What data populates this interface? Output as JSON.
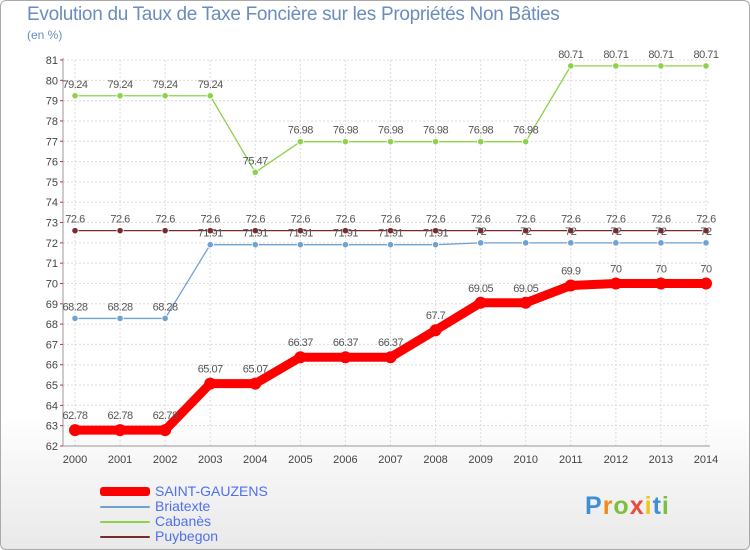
{
  "chart_data": {
    "type": "line",
    "title": "Evolution du Taux de Taxe Foncière sur les Propriétés Non Bâties",
    "ylabel": "(en %)",
    "xlabel": "",
    "ylim": [
      62,
      81
    ],
    "yticks": [
      62,
      63,
      64,
      65,
      66,
      67,
      68,
      69,
      70,
      71,
      72,
      73,
      74,
      75,
      76,
      77,
      78,
      79,
      80,
      81
    ],
    "categories": [
      "2000",
      "2001",
      "2002",
      "2003",
      "2004",
      "2005",
      "2006",
      "2007",
      "2008",
      "2009",
      "2010",
      "2011",
      "2012",
      "2013",
      "2014"
    ],
    "grid": true,
    "series": [
      {
        "name": "Cabanès",
        "color": "#8cd24a",
        "values": [
          79.24,
          79.24,
          79.24,
          79.24,
          75.47,
          76.98,
          76.98,
          76.98,
          76.98,
          76.98,
          76.98,
          80.71,
          80.71,
          80.71,
          80.71
        ],
        "labels": [
          "79.24",
          "79.24",
          "79.24",
          "79.24",
          "75.47",
          "76.98",
          "76.98",
          "76.98",
          "76.98",
          "76.98",
          "76.98",
          "80.71",
          "80.71",
          "80.71",
          "80.71"
        ]
      },
      {
        "name": "Briatexte",
        "color": "#6ea2d2",
        "values": [
          68.28,
          68.28,
          68.28,
          71.91,
          71.91,
          71.91,
          71.91,
          71.91,
          71.91,
          72,
          72,
          72,
          72,
          72,
          72
        ],
        "labels": [
          "68.28",
          "68.28",
          "68.28",
          "71.91",
          "71.91",
          "71.91",
          "71.91",
          "71.91",
          "71.91",
          "72",
          "72",
          "72",
          "72",
          "72",
          "72"
        ]
      },
      {
        "name": "Puybegon",
        "color": "#7a2a2a",
        "values": [
          72.6,
          72.6,
          72.6,
          72.6,
          72.6,
          72.6,
          72.6,
          72.6,
          72.6,
          72.6,
          72.6,
          72.6,
          72.6,
          72.6,
          72.6
        ],
        "labels": [
          "72.6",
          "72.6",
          "72.6",
          "72.6",
          "72.6",
          "72.6",
          "72.6",
          "72.6",
          "72.6",
          "72.6",
          "72.6",
          "72.6",
          "72.6",
          "72.6",
          "72.6"
        ]
      },
      {
        "name": "SAINT-GAUZENS",
        "color": "#ff0000",
        "values": [
          62.78,
          62.78,
          62.78,
          65.07,
          65.07,
          66.37,
          66.37,
          66.37,
          67.7,
          69.05,
          69.05,
          69.9,
          70,
          70,
          70
        ],
        "labels": [
          "62.78",
          "62.78",
          "62.78",
          "65.07",
          "65.07",
          "66.37",
          "66.37",
          "66.37",
          "67.7",
          "69.05",
          "69.05",
          "69.9",
          "70",
          "70",
          "70"
        ]
      }
    ],
    "legend": [
      "SAINT-GAUZENS",
      "Briatexte",
      "Cabanès",
      "Puybegon"
    ]
  },
  "logo": {
    "letters": [
      "P",
      "r",
      "o",
      "x",
      "i",
      "t",
      "i"
    ],
    "colors": [
      "#3c8fd8",
      "#f08a1c",
      "#7cc043",
      "#e84d3c",
      "#f2c318",
      "#3c8fd8",
      "#7cc043"
    ]
  }
}
